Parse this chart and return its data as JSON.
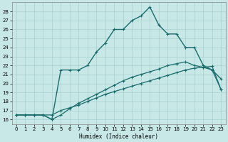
{
  "xlabel": "Humidex (Indice chaleur)",
  "bg_color": "#c8e8e8",
  "grid_color": "#a8d0d0",
  "line_color": "#1a6b6b",
  "xlim": [
    -0.5,
    23.5
  ],
  "ylim": [
    15.5,
    29
  ],
  "yticks": [
    16,
    17,
    18,
    19,
    20,
    21,
    22,
    23,
    24,
    25,
    26,
    27,
    28
  ],
  "xticks": [
    0,
    1,
    2,
    3,
    4,
    5,
    6,
    7,
    8,
    9,
    10,
    11,
    12,
    13,
    14,
    15,
    16,
    17,
    18,
    19,
    20,
    21,
    22,
    23
  ],
  "line1_x": [
    0,
    1,
    2,
    3,
    4,
    5,
    6,
    7,
    8,
    9,
    10,
    11,
    12,
    13,
    14,
    15,
    16,
    17,
    18,
    19,
    20,
    21,
    22,
    23
  ],
  "line1_y": [
    16.5,
    16.5,
    16.5,
    16.5,
    16.5,
    17.0,
    17.3,
    17.6,
    18.0,
    18.4,
    18.8,
    19.1,
    19.4,
    19.7,
    20.0,
    20.3,
    20.6,
    20.9,
    21.2,
    21.5,
    21.7,
    21.8,
    21.9,
    19.3
  ],
  "line2_x": [
    0,
    1,
    2,
    3,
    4,
    5,
    6,
    7,
    8,
    9,
    10,
    11,
    12,
    13,
    14,
    15,
    16,
    17,
    18,
    19,
    20,
    21,
    22,
    23
  ],
  "line2_y": [
    16.5,
    16.5,
    16.5,
    16.5,
    16.0,
    16.5,
    17.2,
    17.8,
    18.3,
    18.8,
    19.3,
    19.8,
    20.3,
    20.7,
    21.0,
    21.3,
    21.6,
    22.0,
    22.2,
    22.4,
    22.0,
    21.8,
    21.5,
    19.3
  ],
  "line3_x": [
    0,
    1,
    2,
    3,
    4,
    5,
    6,
    7,
    8,
    9,
    10,
    11,
    12,
    13,
    14,
    15,
    16,
    17,
    18,
    19,
    20,
    21,
    22,
    23
  ],
  "line3_y": [
    16.5,
    16.5,
    16.5,
    16.5,
    16.0,
    21.5,
    21.5,
    21.5,
    22.0,
    23.5,
    24.5,
    26.0,
    26.0,
    27.0,
    27.5,
    28.5,
    26.5,
    25.5,
    25.5,
    24.0,
    24.0,
    22.0,
    21.5,
    20.5
  ]
}
